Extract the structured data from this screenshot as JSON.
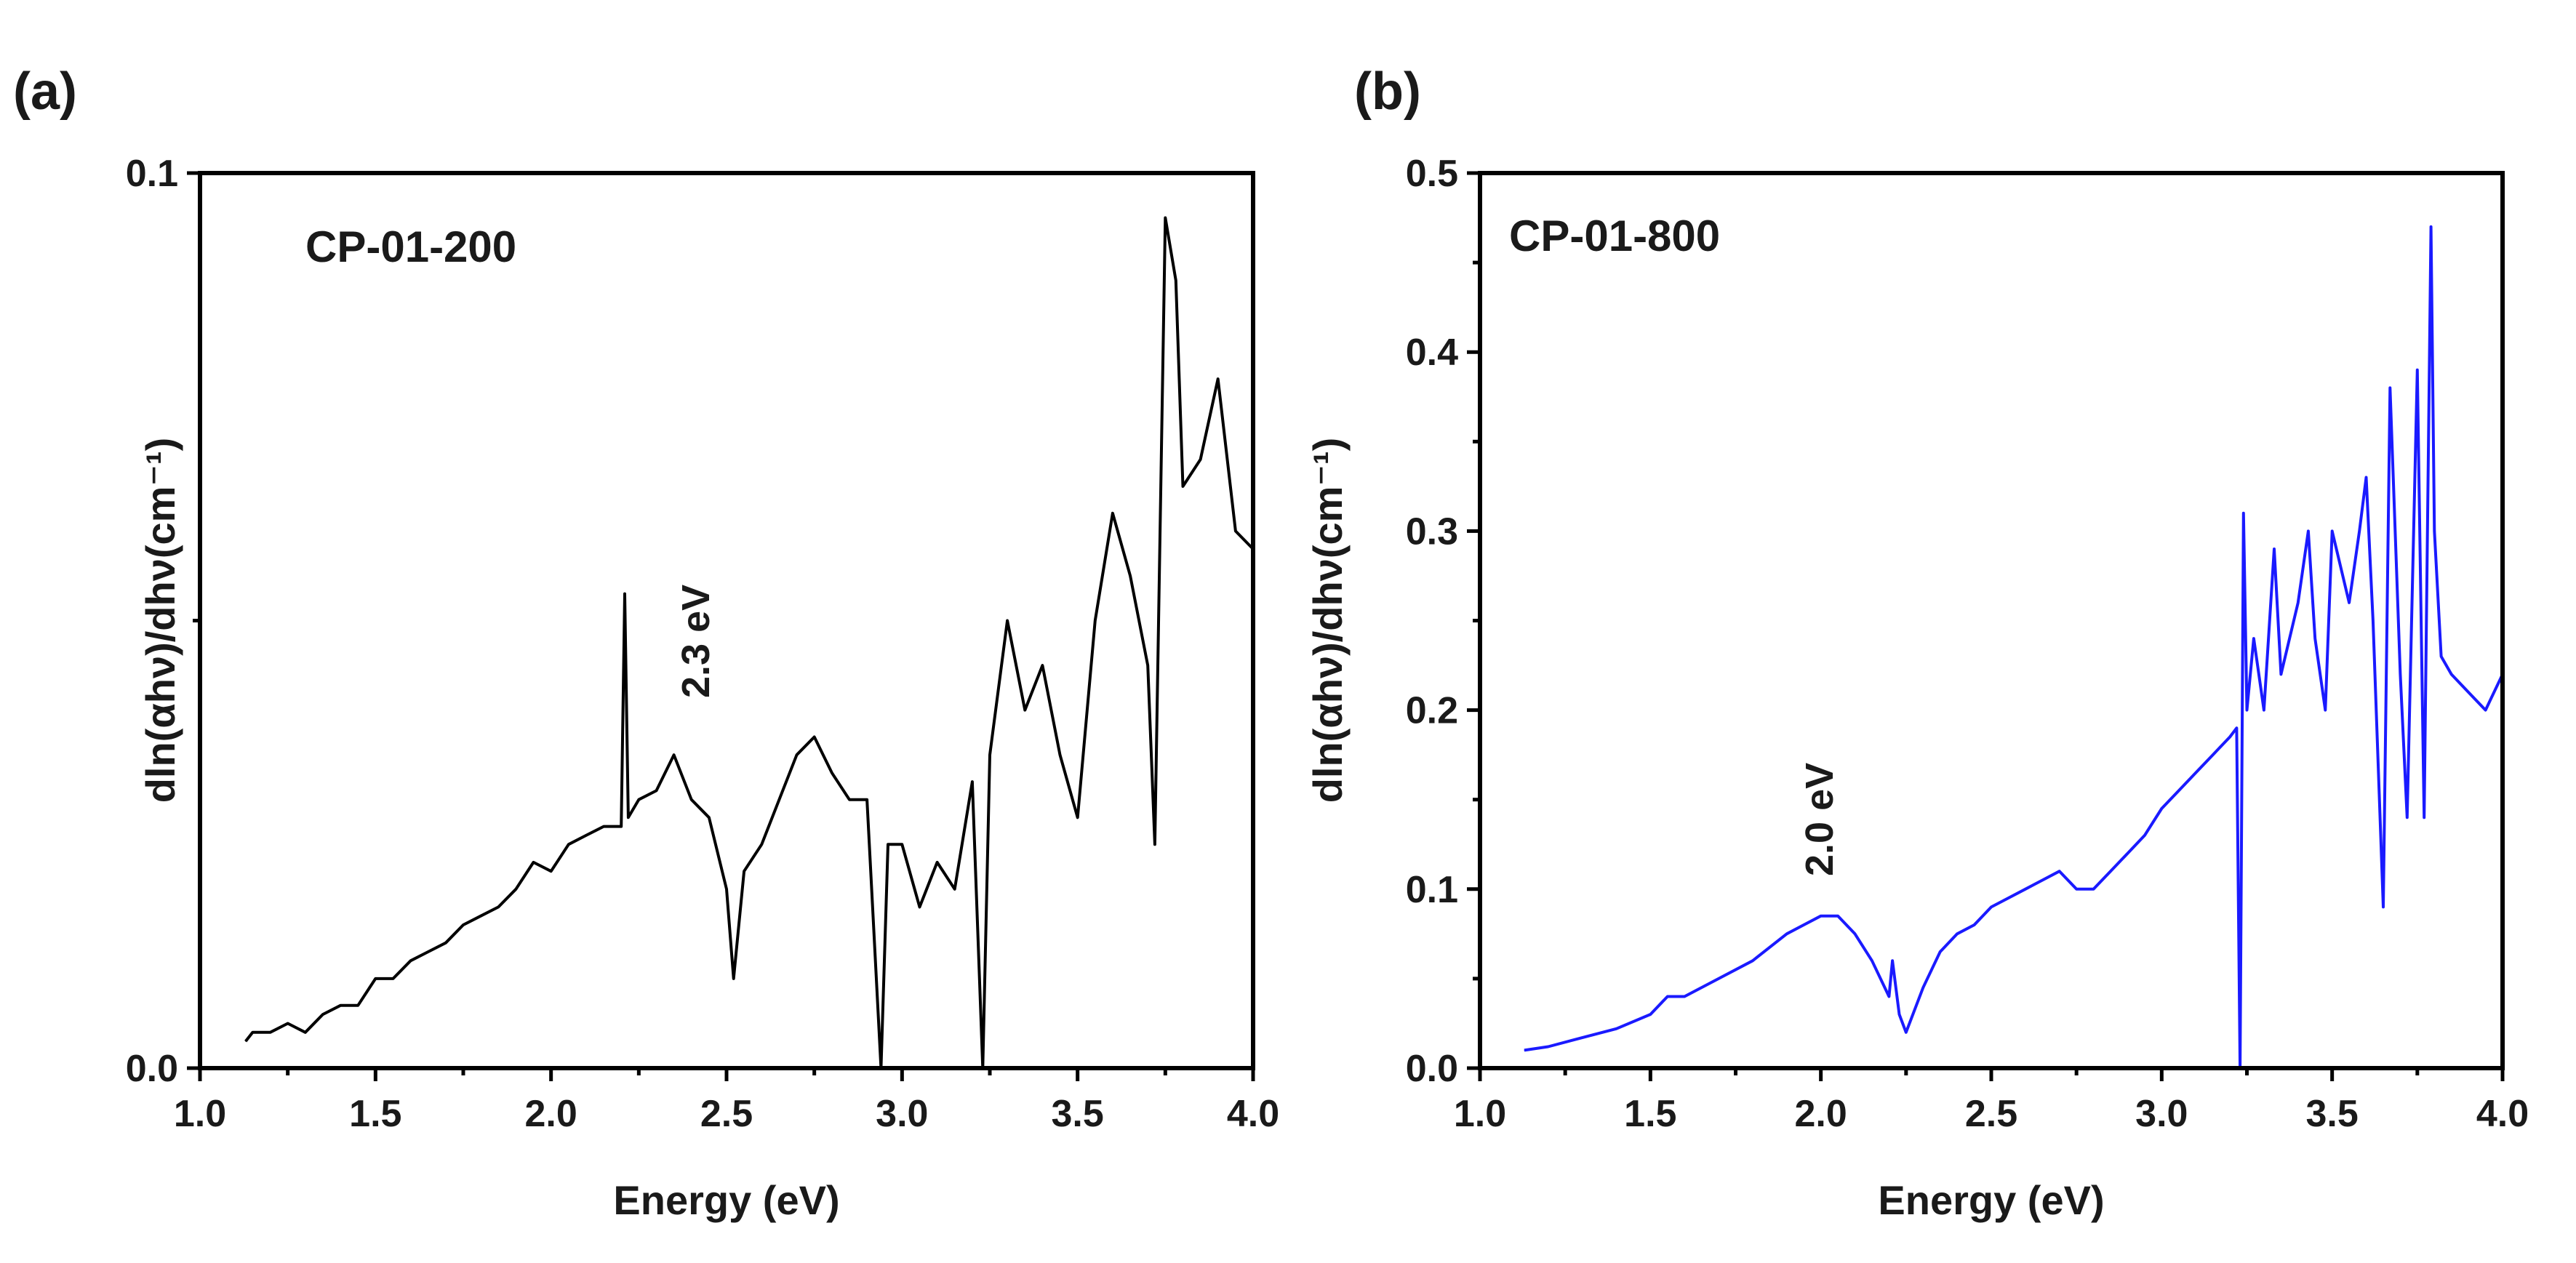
{
  "chart_data": [
    {
      "type": "line",
      "panel": "(a)",
      "sample_label": "CP-01-200",
      "xlabel": "Energy (eV)",
      "ylabel": "dln(αhν)/dhν(cm⁻¹)",
      "xlim": [
        1.0,
        4.0
      ],
      "ylim": [
        0.0,
        0.1
      ],
      "xticks": [
        "1.0",
        "1.5",
        "2.0",
        "2.5",
        "3.0",
        "3.5",
        "4.0"
      ],
      "yticks": [
        "0.0",
        "0.1"
      ],
      "color": "#000000",
      "annotation": {
        "text": "2.3 eV",
        "x": 2.35,
        "y": 0.048
      },
      "series": [
        {
          "name": "CP-01-200",
          "x": [
            1.13,
            1.15,
            1.2,
            1.25,
            1.3,
            1.35,
            1.4,
            1.45,
            1.5,
            1.55,
            1.6,
            1.65,
            1.7,
            1.75,
            1.8,
            1.85,
            1.9,
            1.95,
            2.0,
            2.05,
            2.1,
            2.15,
            2.2,
            2.21,
            2.22,
            2.25,
            2.3,
            2.35,
            2.4,
            2.45,
            2.5,
            2.52,
            2.55,
            2.6,
            2.65,
            2.7,
            2.75,
            2.8,
            2.85,
            2.9,
            2.94,
            2.96,
            3.0,
            3.05,
            3.1,
            3.15,
            3.2,
            3.23,
            3.25,
            3.3,
            3.35,
            3.4,
            3.45,
            3.5,
            3.55,
            3.6,
            3.65,
            3.7,
            3.72,
            3.75,
            3.78,
            3.8,
            3.85,
            3.9,
            3.95,
            4.0
          ],
          "y": [
            0.003,
            0.004,
            0.004,
            0.005,
            0.004,
            0.006,
            0.007,
            0.007,
            0.01,
            0.01,
            0.012,
            0.013,
            0.014,
            0.016,
            0.017,
            0.018,
            0.02,
            0.023,
            0.022,
            0.025,
            0.026,
            0.027,
            0.027,
            0.053,
            0.028,
            0.03,
            0.031,
            0.035,
            0.03,
            0.028,
            0.02,
            0.01,
            0.022,
            0.025,
            0.03,
            0.035,
            0.037,
            0.033,
            0.03,
            0.03,
            0.0,
            0.025,
            0.025,
            0.018,
            0.023,
            0.02,
            0.032,
            0.0,
            0.035,
            0.05,
            0.04,
            0.045,
            0.035,
            0.028,
            0.05,
            0.062,
            0.055,
            0.045,
            0.025,
            0.095,
            0.088,
            0.065,
            0.068,
            0.077,
            0.06,
            0.058
          ]
        }
      ]
    },
    {
      "type": "line",
      "panel": "(b)",
      "sample_label": "CP-01-800",
      "xlabel": "Energy (eV)",
      "ylabel": "dln(αhν)/dhν(cm⁻¹)",
      "xlim": [
        1.0,
        4.0
      ],
      "ylim": [
        0.0,
        0.5
      ],
      "xticks": [
        "1.0",
        "1.5",
        "2.0",
        "2.5",
        "3.0",
        "3.5",
        "4.0"
      ],
      "yticks": [
        "0.0",
        "0.1",
        "0.2",
        "0.3",
        "0.4",
        "0.5"
      ],
      "color": "#1a1aff",
      "annotation": {
        "text": "2.0 eV",
        "x": 2.0,
        "y": 0.11
      },
      "series": [
        {
          "name": "CP-01-800",
          "x": [
            1.13,
            1.2,
            1.3,
            1.4,
            1.5,
            1.55,
            1.6,
            1.7,
            1.8,
            1.9,
            1.95,
            2.0,
            2.05,
            2.1,
            2.15,
            2.2,
            2.21,
            2.23,
            2.25,
            2.3,
            2.35,
            2.4,
            2.45,
            2.5,
            2.55,
            2.6,
            2.65,
            2.7,
            2.75,
            2.8,
            2.85,
            2.9,
            2.95,
            3.0,
            3.05,
            3.1,
            3.15,
            3.2,
            3.22,
            3.23,
            3.24,
            3.25,
            3.27,
            3.3,
            3.33,
            3.35,
            3.4,
            3.43,
            3.45,
            3.48,
            3.5,
            3.55,
            3.58,
            3.6,
            3.62,
            3.65,
            3.67,
            3.7,
            3.72,
            3.75,
            3.77,
            3.79,
            3.8,
            3.82,
            3.85,
            3.9,
            3.95,
            4.0
          ],
          "y": [
            0.01,
            0.012,
            0.017,
            0.022,
            0.03,
            0.04,
            0.04,
            0.05,
            0.06,
            0.075,
            0.08,
            0.085,
            0.085,
            0.075,
            0.06,
            0.04,
            0.06,
            0.03,
            0.02,
            0.045,
            0.065,
            0.075,
            0.08,
            0.09,
            0.095,
            0.1,
            0.105,
            0.11,
            0.1,
            0.1,
            0.11,
            0.12,
            0.13,
            0.145,
            0.155,
            0.165,
            0.175,
            0.185,
            0.19,
            0.0,
            0.31,
            0.2,
            0.24,
            0.2,
            0.29,
            0.22,
            0.26,
            0.3,
            0.24,
            0.2,
            0.3,
            0.26,
            0.3,
            0.33,
            0.25,
            0.09,
            0.38,
            0.22,
            0.14,
            0.39,
            0.14,
            0.47,
            0.3,
            0.23,
            0.22,
            0.21,
            0.2,
            0.22
          ]
        }
      ]
    }
  ]
}
